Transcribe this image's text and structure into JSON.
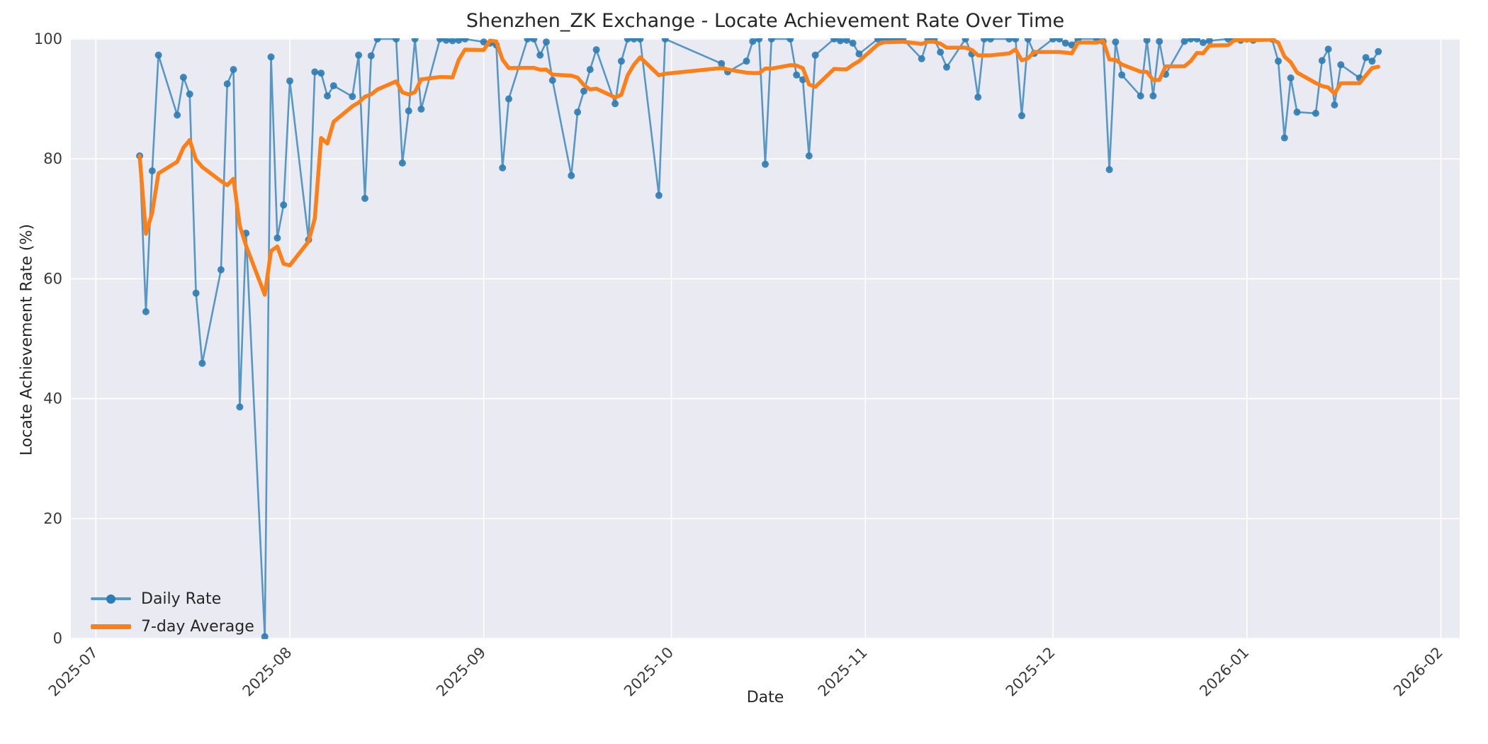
{
  "figure": {
    "title": "Shenzhen_ZK Exchange - Locate Achievement Rate Over Time",
    "xlabel": "Date",
    "ylabel": "Locate Achievement Rate (%)"
  },
  "legend": {
    "items": [
      {
        "label": "Daily Rate",
        "icon": "line-with-dot-swatch",
        "color": "#5b97c4"
      },
      {
        "label": "7-day Average",
        "icon": "thick-line-swatch",
        "color": "#fd7f17"
      }
    ]
  },
  "chart_data": {
    "type": "line",
    "title": "Shenzhen_ZK Exchange - Locate Achievement Rate Over Time",
    "xlabel": "Date",
    "ylabel": "Locate Achievement Rate (%)",
    "ylim": [
      0,
      100
    ],
    "grid": true,
    "plot_background": "#eaeaf2",
    "grid_color": "#ffffff",
    "legend_position": "lower left",
    "x_domain": [
      "2025-06-27",
      "2026-02-04"
    ],
    "x_ticks": [
      {
        "date": "2025-07-01",
        "label": "2025-07"
      },
      {
        "date": "2025-08-01",
        "label": "2025-08"
      },
      {
        "date": "2025-09-01",
        "label": "2025-09"
      },
      {
        "date": "2025-10-01",
        "label": "2025-10"
      },
      {
        "date": "2025-11-01",
        "label": "2025-11"
      },
      {
        "date": "2025-12-01",
        "label": "2025-12"
      },
      {
        "date": "2026-01-01",
        "label": "2026-01"
      },
      {
        "date": "2026-02-01",
        "label": "2026-02"
      }
    ],
    "y_ticks": [
      0,
      20,
      40,
      60,
      80,
      100
    ],
    "series": [
      {
        "name": "Daily Rate",
        "line_color": "#1f77b4",
        "line_opacity": 0.72,
        "marker_color": "#2e7cb3",
        "marker": "o",
        "dates": [
          "2025-07-08",
          "2025-07-09",
          "2025-07-10",
          "2025-07-11",
          "2025-07-14",
          "2025-07-15",
          "2025-07-16",
          "2025-07-17",
          "2025-07-18",
          "2025-07-21",
          "2025-07-22",
          "2025-07-23",
          "2025-07-24",
          "2025-07-25",
          "2025-07-28",
          "2025-07-29",
          "2025-07-30",
          "2025-07-31",
          "2025-08-01",
          "2025-08-04",
          "2025-08-05",
          "2025-08-06",
          "2025-08-07",
          "2025-08-08",
          "2025-08-11",
          "2025-08-12",
          "2025-08-13",
          "2025-08-14",
          "2025-08-15",
          "2025-08-18",
          "2025-08-19",
          "2025-08-20",
          "2025-08-21",
          "2025-08-22",
          "2025-08-25",
          "2025-08-26",
          "2025-08-27",
          "2025-08-28",
          "2025-08-29",
          "2025-09-01",
          "2025-09-02",
          "2025-09-03",
          "2025-09-04",
          "2025-09-05",
          "2025-09-08",
          "2025-09-09",
          "2025-09-10",
          "2025-09-11",
          "2025-09-12",
          "2025-09-15",
          "2025-09-16",
          "2025-09-17",
          "2025-09-18",
          "2025-09-19",
          "2025-09-22",
          "2025-09-23",
          "2025-09-24",
          "2025-09-25",
          "2025-09-26",
          "2025-09-29",
          "2025-09-30",
          "2025-10-09",
          "2025-10-10",
          "2025-10-13",
          "2025-10-14",
          "2025-10-15",
          "2025-10-16",
          "2025-10-17",
          "2025-10-20",
          "2025-10-21",
          "2025-10-22",
          "2025-10-23",
          "2025-10-24",
          "2025-10-27",
          "2025-10-28",
          "2025-10-29",
          "2025-10-30",
          "2025-10-31",
          "2025-11-03",
          "2025-11-04",
          "2025-11-05",
          "2025-11-06",
          "2025-11-07",
          "2025-11-10",
          "2025-11-11",
          "2025-11-12",
          "2025-11-13",
          "2025-11-14",
          "2025-11-17",
          "2025-11-18",
          "2025-11-19",
          "2025-11-20",
          "2025-11-21",
          "2025-11-24",
          "2025-11-25",
          "2025-11-26",
          "2025-11-27",
          "2025-11-28",
          "2025-12-01",
          "2025-12-02",
          "2025-12-03",
          "2025-12-04",
          "2025-12-05",
          "2025-12-08",
          "2025-12-09",
          "2025-12-10",
          "2025-12-11",
          "2025-12-12",
          "2025-12-15",
          "2025-12-16",
          "2025-12-17",
          "2025-12-18",
          "2025-12-19",
          "2025-12-22",
          "2025-12-23",
          "2025-12-24",
          "2025-12-25",
          "2025-12-26",
          "2025-12-29",
          "2025-12-30",
          "2025-12-31",
          "2026-01-01",
          "2026-01-02",
          "2026-01-05",
          "2026-01-06",
          "2026-01-07",
          "2026-01-08",
          "2026-01-09",
          "2026-01-12",
          "2026-01-13",
          "2026-01-14",
          "2026-01-15",
          "2026-01-16",
          "2026-01-19",
          "2026-01-20",
          "2026-01-21",
          "2026-01-22"
        ],
        "values": [
          80.5,
          54.5,
          78.0,
          97.3,
          87.3,
          93.6,
          90.8,
          57.6,
          45.9,
          61.5,
          92.5,
          94.9,
          38.6,
          67.6,
          0.3,
          97.0,
          66.8,
          72.3,
          93.0,
          66.5,
          94.5,
          94.3,
          90.5,
          92.2,
          90.4,
          97.3,
          73.4,
          97.2,
          100,
          100,
          79.3,
          88.0,
          100,
          88.3,
          100,
          99.8,
          99.7,
          99.8,
          100,
          99.5,
          99.3,
          99.0,
          78.5,
          90.0,
          100,
          100,
          97.3,
          99.5,
          93.1,
          77.2,
          87.8,
          91.3,
          94.9,
          98.2,
          89.2,
          96.3,
          100,
          100,
          100,
          73.9,
          100,
          95.9,
          94.5,
          96.3,
          99.6,
          100,
          79.1,
          100,
          100,
          94.0,
          93.2,
          80.5,
          97.3,
          100,
          99.7,
          99.8,
          99.3,
          97.5,
          100,
          100,
          100,
          100,
          100,
          96.7,
          100,
          100,
          97.8,
          95.3,
          100,
          97.5,
          90.3,
          100,
          100,
          100,
          100,
          87.2,
          100,
          97.6,
          100,
          100,
          99.3,
          99.0,
          100,
          100,
          99.6,
          78.2,
          99.5,
          94.0,
          90.5,
          99.8,
          90.5,
          99.6,
          94.1,
          99.6,
          100,
          100,
          99.4,
          99.7,
          100,
          100,
          99.8,
          100,
          99.8,
          100,
          96.3,
          83.5,
          93.5,
          87.8,
          87.6,
          96.4,
          98.3,
          89.0,
          95.7,
          93.5,
          96.9,
          96.3,
          97.9
        ]
      },
      {
        "name": "7-day Average",
        "line_color": "#fd7f17",
        "derived": "rolling_mean",
        "window": 7,
        "min_periods": 1,
        "source": "Daily Rate"
      }
    ]
  }
}
